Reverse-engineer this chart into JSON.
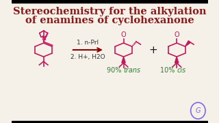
{
  "title_line1": "Stereochemistry for the alkylation",
  "title_line2": "of enamines of cyclohexanone",
  "title_color": "#8B1A1A",
  "title_fontsize": 10.5,
  "title_fontweight": "bold",
  "bg_color": "#F5F0E8",
  "structure_color": "#C2185B",
  "label_color": "#2E7D32",
  "reaction_text1": "1. n-PrI",
  "reaction_text2": "2. H+, H2O",
  "label_trans_pct": "90% ",
  "label_trans_word": "trans",
  "label_cis_pct": "10% ",
  "label_cis_word": "cis",
  "plus_sign": "+",
  "arrow_color": "#8B0000",
  "text_color": "#1A1A1A",
  "reaction_text_color": "#333333",
  "watermark_color": "#7B68EE"
}
